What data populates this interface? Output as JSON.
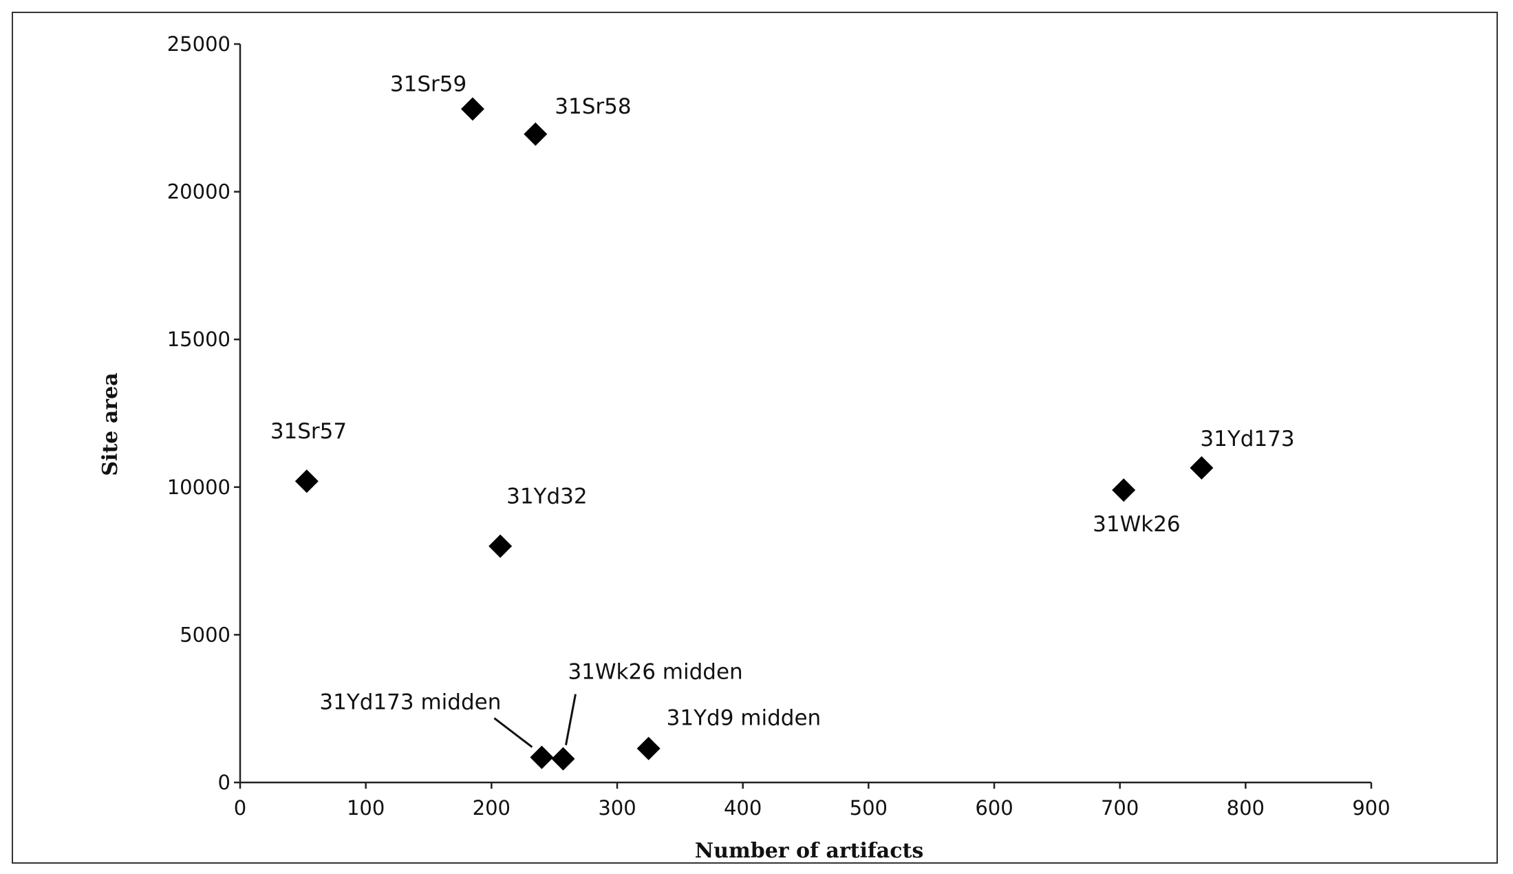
{
  "chart_data": {
    "type": "scatter",
    "title": "",
    "xlabel": "Number of artifacts",
    "ylabel": "Site area",
    "xlim": [
      0,
      900
    ],
    "ylim": [
      0,
      25000
    ],
    "xticks": [
      0,
      100,
      200,
      300,
      400,
      500,
      600,
      700,
      800,
      900
    ],
    "yticks": [
      0,
      5000,
      10000,
      15000,
      20000,
      25000
    ],
    "grid": false,
    "legend": "none",
    "marker": "diamond",
    "marker_color": "#000000",
    "points": [
      {
        "label": "31Sr59",
        "x": 185,
        "y": 22800
      },
      {
        "label": "31Sr58",
        "x": 235,
        "y": 21950
      },
      {
        "label": "31Sr57",
        "x": 53,
        "y": 10200
      },
      {
        "label": "31Yd32",
        "x": 207,
        "y": 8000
      },
      {
        "label": "31Wk26",
        "x": 703,
        "y": 9900
      },
      {
        "label": "31Yd173",
        "x": 765,
        "y": 10650
      },
      {
        "label": "31Yd173 midden",
        "x": 240,
        "y": 850
      },
      {
        "label": "31Wk26 midden",
        "x": 257,
        "y": 800
      },
      {
        "label": "31Yd9 midden",
        "x": 325,
        "y": 1150
      }
    ]
  }
}
